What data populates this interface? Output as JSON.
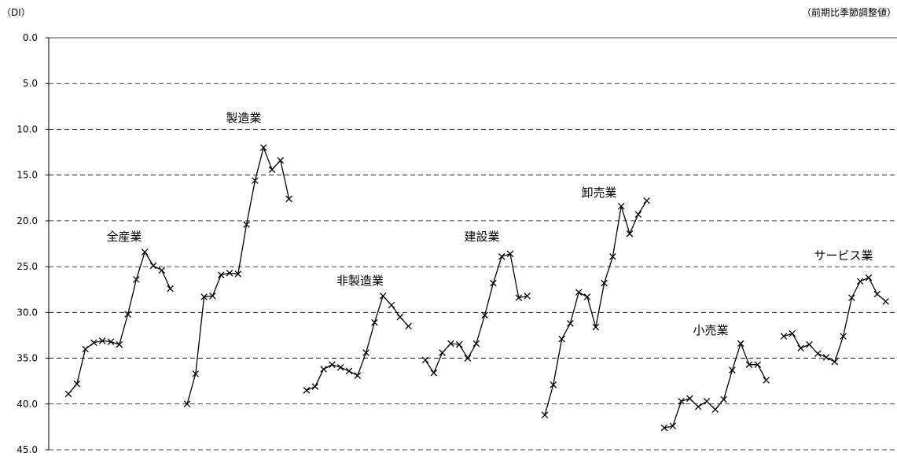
{
  "chart_data": {
    "type": "line",
    "unit_left": "（DI）",
    "unit_right": "（前期比季節調整値）",
    "ylim": [
      45.0,
      0.0
    ],
    "y_inverted": true,
    "y_ticks": [
      "0.0",
      "5.0",
      "10.0",
      "15.0",
      "20.0",
      "25.0",
      "30.0",
      "35.0",
      "40.0",
      "45.0"
    ],
    "grid": "horizontal dashed",
    "line_color": "#000000",
    "series": [
      {
        "name": "全産業",
        "values": [
          38.9,
          37.8,
          34.0,
          33.3,
          33.1,
          33.2,
          33.5,
          30.2,
          26.4,
          23.4,
          24.9,
          25.4,
          27.4
        ]
      },
      {
        "name": "製造業",
        "values": [
          40.0,
          36.7,
          28.3,
          28.2,
          25.9,
          25.7,
          25.8,
          20.4,
          15.6,
          12.0,
          14.4,
          13.4,
          17.6
        ]
      },
      {
        "name": "非製造業",
        "values": [
          38.5,
          38.1,
          36.2,
          35.7,
          36.0,
          36.4,
          36.9,
          34.4,
          31.1,
          28.2,
          29.2,
          30.5,
          31.5
        ]
      },
      {
        "name": "建設業",
        "values": [
          35.2,
          36.6,
          34.4,
          33.4,
          33.5,
          35.0,
          33.4,
          30.3,
          26.8,
          23.9,
          23.6,
          28.4,
          28.2
        ]
      },
      {
        "name": "卸売業",
        "values": [
          41.2,
          37.9,
          32.9,
          31.2,
          27.8,
          28.3,
          31.6,
          26.8,
          23.9,
          18.4,
          21.4,
          19.3,
          17.8
        ]
      },
      {
        "name": "小売業",
        "values": [
          42.6,
          42.4,
          39.7,
          39.4,
          40.3,
          39.7,
          40.6,
          39.5,
          36.3,
          33.4,
          35.7,
          35.7,
          37.4
        ]
      },
      {
        "name": "サービス業",
        "values": [
          32.6,
          32.3,
          33.9,
          33.5,
          34.5,
          34.9,
          35.4,
          32.6,
          28.4,
          26.6,
          26.2,
          28.0,
          28.8
        ]
      }
    ]
  }
}
